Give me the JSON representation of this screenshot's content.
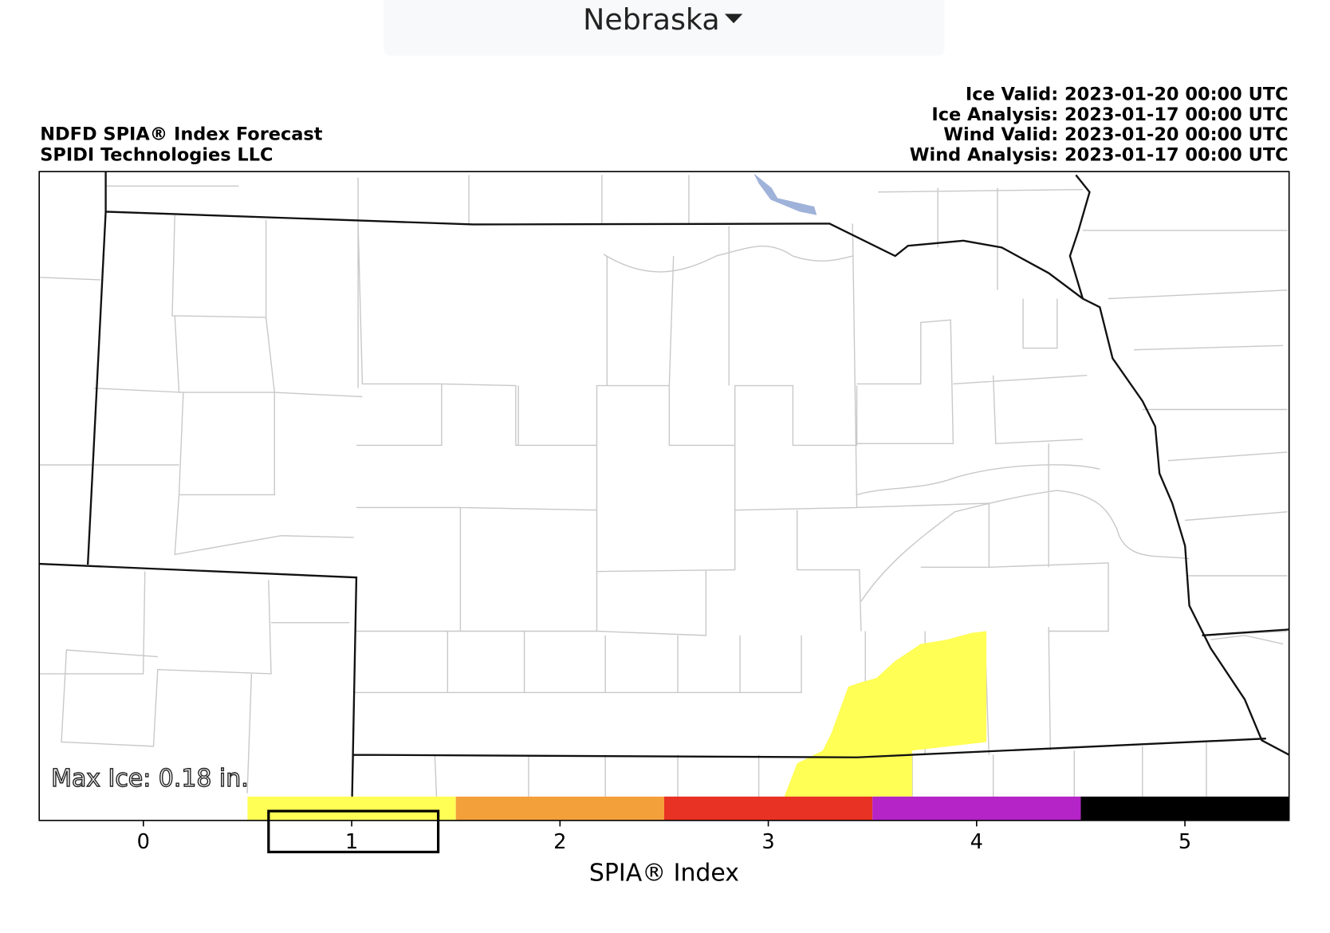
{
  "dropdown": {
    "label": "Nebraska"
  },
  "header": {
    "title": "NDFD SPIA® Index Forecast",
    "credit": "SPIDI Technologies LLC",
    "times": [
      "Ice Valid: 2023-01-20 00:00 UTC",
      "Ice Analysis: 2023-01-17 00:00 UTC",
      "Wind Valid: 2023-01-20 00:00 UTC",
      "Wind Analysis: 2023-01-17 00:00 UTC"
    ]
  },
  "map": {
    "annotation": "Max Ice: 0.18 in."
  },
  "colorbar": {
    "label": "SPIA® Index",
    "lim": [
      -0.5,
      5.5
    ],
    "ticks": [
      0,
      1,
      2,
      3,
      4,
      5
    ],
    "colors": [
      "#ffffff",
      "#ffff55",
      "#f4a03a",
      "#e83223",
      "#b524c7",
      "#000000"
    ]
  }
}
